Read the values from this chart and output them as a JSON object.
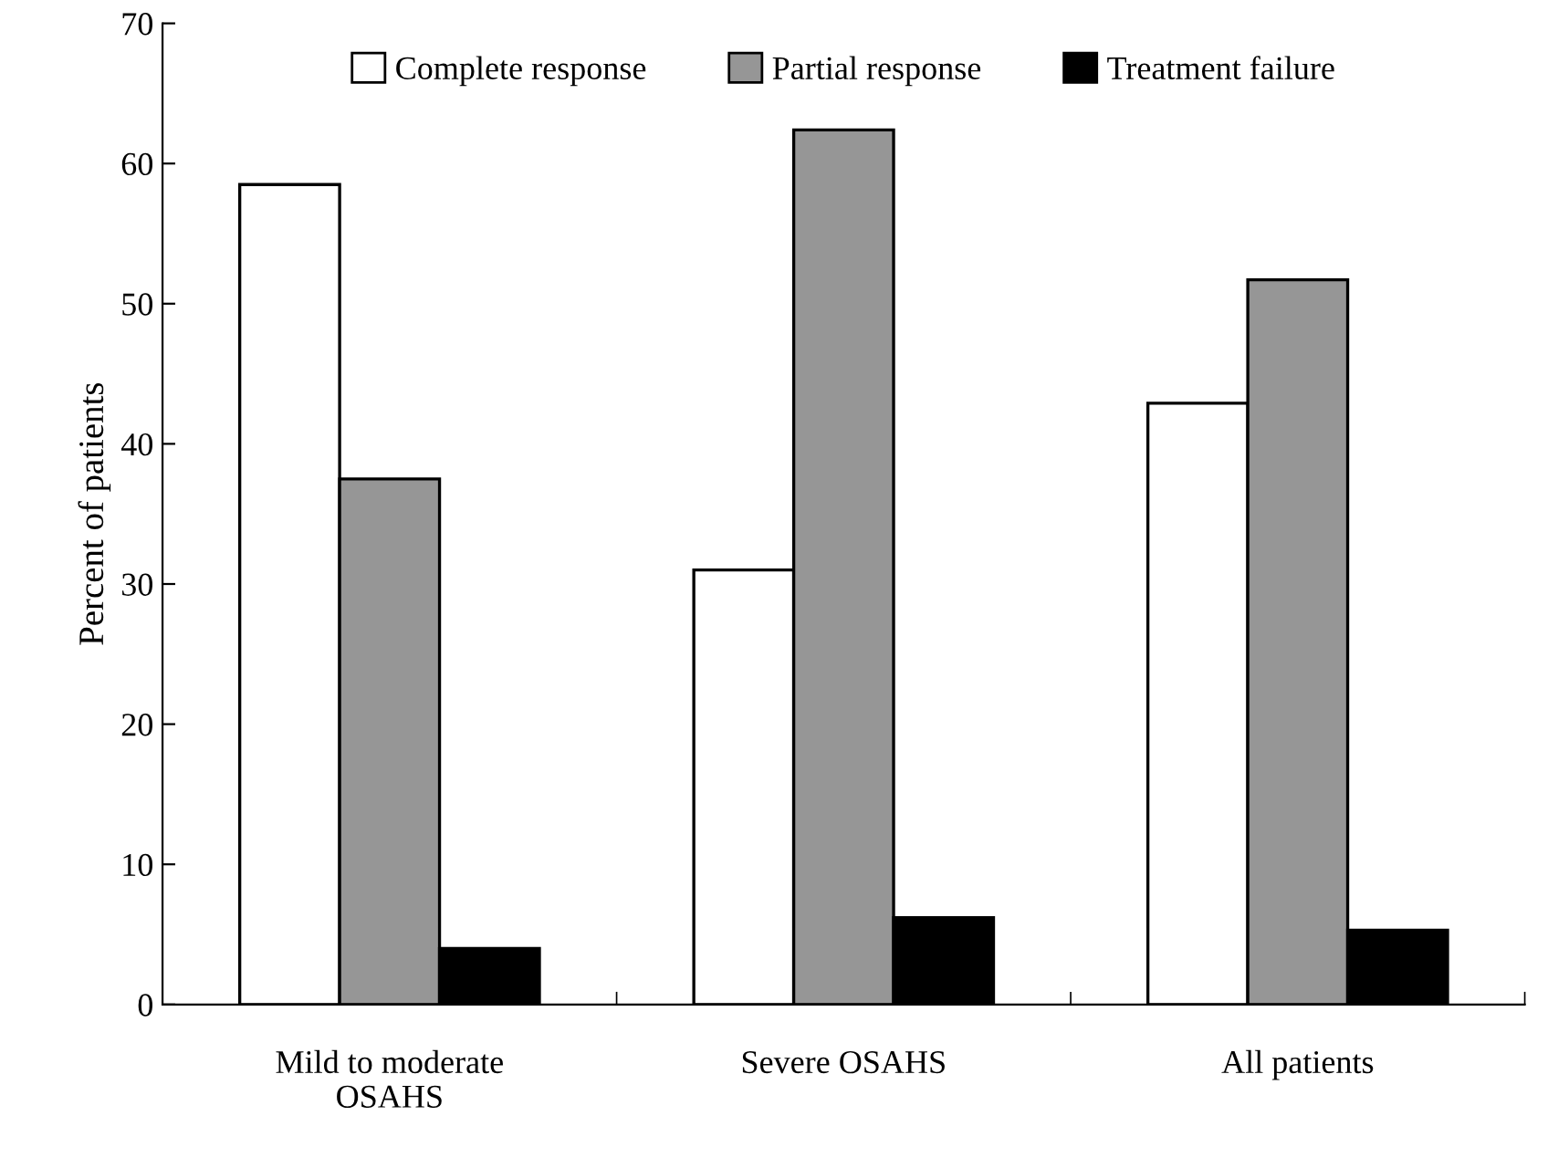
{
  "chart_data": {
    "type": "bar",
    "ylabel": "Percent of patients",
    "categories": [
      "Mild to moderate\nOSAHS",
      "Severe OSAHS",
      "All patients"
    ],
    "series": [
      {
        "name": "Complete response",
        "color": "#ffffff",
        "values": [
          58.5,
          31.0,
          42.9
        ]
      },
      {
        "name": "Partial response",
        "color": "#969696",
        "values": [
          37.5,
          62.4,
          51.7
        ]
      },
      {
        "name": "Treatment failure",
        "color": "#000000",
        "values": [
          4.0,
          6.2,
          5.3
        ]
      }
    ],
    "ylim": [
      0,
      70
    ],
    "yticks": [
      0,
      10,
      20,
      30,
      40,
      50,
      60,
      70
    ],
    "grid": false,
    "legend": "top"
  }
}
